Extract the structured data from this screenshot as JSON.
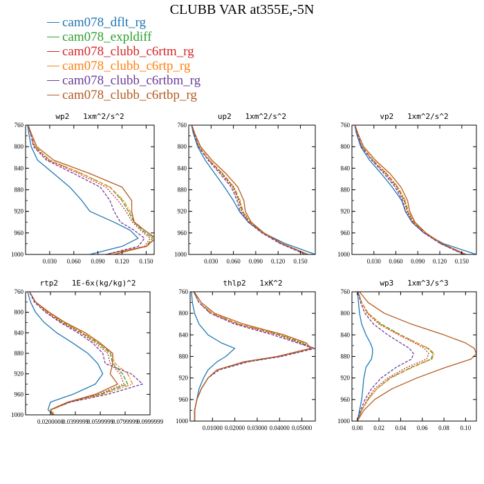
{
  "title": "CLUBB VAR at355E,-5N",
  "legend": [
    {
      "name": "cam078_dflt_rg",
      "color": "#1f77b4",
      "dash": ""
    },
    {
      "name": "cam078_expldiff",
      "color": "#2ca02c",
      "dash": "6,2"
    },
    {
      "name": "cam078_clubb_c6rtm_rg",
      "color": "#d62728",
      "dash": "2,2"
    },
    {
      "name": "cam078_clubb_c6rtp_rg",
      "color": "#ff7f0e",
      "dash": "6,2,2,2"
    },
    {
      "name": "cam078_clubb_c6rtbm_rg",
      "color": "#6a3d9a",
      "dash": "4,2"
    },
    {
      "name": "cam078_clubb_c6rtbp_rg",
      "color": "#b35a1f",
      "dash": ""
    }
  ],
  "chart_data": [
    {
      "type": "line",
      "title": "wp2   1xm^2/s^2",
      "xlim": [
        0,
        0.16
      ],
      "ylim": [
        760,
        1000
      ],
      "xticks": [
        0.03,
        0.06,
        0.09,
        0.12,
        0.15
      ],
      "xticklabels": [
        "0.030",
        "0.060",
        "0.090",
        "0.120",
        "0.150"
      ],
      "yticks": [
        760,
        800,
        840,
        880,
        920,
        960,
        1000
      ],
      "y": [
        755,
        775,
        800,
        825,
        850,
        875,
        900,
        920,
        940,
        955,
        970,
        985,
        1000
      ],
      "series": [
        {
          "name": "cam078_dflt_rg",
          "values": [
            0.002,
            0.004,
            0.007,
            0.015,
            0.035,
            0.055,
            0.07,
            0.08,
            0.11,
            0.13,
            0.14,
            0.12,
            0.08
          ]
        },
        {
          "name": "cam078_expldiff",
          "values": [
            0.002,
            0.006,
            0.012,
            0.03,
            0.07,
            0.105,
            0.12,
            0.128,
            0.135,
            0.145,
            0.158,
            0.15,
            0.1
          ]
        },
        {
          "name": "cam078_clubb_c6rtm_rg",
          "values": [
            0.002,
            0.006,
            0.011,
            0.028,
            0.066,
            0.1,
            0.115,
            0.125,
            0.133,
            0.143,
            0.155,
            0.148,
            0.1
          ]
        },
        {
          "name": "cam078_clubb_c6rtp_rg",
          "values": [
            0.002,
            0.006,
            0.012,
            0.03,
            0.07,
            0.105,
            0.122,
            0.13,
            0.136,
            0.148,
            0.16,
            0.152,
            0.1
          ]
        },
        {
          "name": "cam078_clubb_c6rtbm_rg",
          "values": [
            0.002,
            0.006,
            0.01,
            0.026,
            0.06,
            0.093,
            0.105,
            0.11,
            0.118,
            0.135,
            0.148,
            0.14,
            0.1
          ]
        },
        {
          "name": "cam078_clubb_c6rtbp_rg",
          "values": [
            0.002,
            0.007,
            0.014,
            0.035,
            0.08,
            0.12,
            0.132,
            0.132,
            0.135,
            0.148,
            0.162,
            0.15,
            0.11
          ]
        }
      ]
    },
    {
      "type": "line",
      "title": "up2   1xm^2/s^2",
      "xlim": [
        0,
        0.17
      ],
      "ylim": [
        760,
        1000
      ],
      "xticks": [
        0.03,
        0.06,
        0.09,
        0.12,
        0.15
      ],
      "xticklabels": [
        "0.030",
        "0.060",
        "0.090",
        "0.120",
        "0.150"
      ],
      "yticks": [
        760,
        800,
        840,
        880,
        920,
        960,
        1000
      ],
      "y": [
        755,
        775,
        800,
        825,
        850,
        875,
        900,
        920,
        940,
        960,
        980,
        1000
      ],
      "series": [
        {
          "name": "cam078_dflt_rg",
          "values": [
            0.003,
            0.006,
            0.012,
            0.022,
            0.035,
            0.048,
            0.06,
            0.068,
            0.08,
            0.1,
            0.13,
            0.17
          ]
        },
        {
          "name": "cam078_expldiff",
          "values": [
            0.003,
            0.007,
            0.014,
            0.028,
            0.045,
            0.06,
            0.068,
            0.072,
            0.082,
            0.1,
            0.125,
            0.16
          ]
        },
        {
          "name": "cam078_clubb_c6rtm_rg",
          "values": [
            0.003,
            0.007,
            0.014,
            0.027,
            0.044,
            0.059,
            0.067,
            0.071,
            0.081,
            0.099,
            0.124,
            0.158
          ]
        },
        {
          "name": "cam078_clubb_c6rtp_rg",
          "values": [
            0.003,
            0.007,
            0.014,
            0.028,
            0.046,
            0.061,
            0.069,
            0.073,
            0.083,
            0.1,
            0.125,
            0.16
          ]
        },
        {
          "name": "cam078_clubb_c6rtbm_rg",
          "values": [
            0.003,
            0.007,
            0.013,
            0.026,
            0.042,
            0.057,
            0.065,
            0.069,
            0.08,
            0.098,
            0.123,
            0.157
          ]
        },
        {
          "name": "cam078_clubb_c6rtbp_rg",
          "values": [
            0.003,
            0.008,
            0.016,
            0.031,
            0.05,
            0.066,
            0.074,
            0.076,
            0.084,
            0.101,
            0.126,
            0.16
          ]
        }
      ]
    },
    {
      "type": "line",
      "title": "vp2   1xm^2/s^2",
      "xlim": [
        0,
        0.17
      ],
      "ylim": [
        760,
        1000
      ],
      "xticks": [
        0.03,
        0.06,
        0.09,
        0.12,
        0.15
      ],
      "xticklabels": [
        "0.030",
        "0.060",
        "0.090",
        "0.120",
        "0.150"
      ],
      "yticks": [
        760,
        800,
        840,
        880,
        920,
        960,
        1000
      ],
      "y": [
        755,
        775,
        800,
        825,
        850,
        875,
        900,
        920,
        940,
        960,
        980,
        1000
      ],
      "series": [
        {
          "name": "cam078_dflt_rg",
          "values": [
            0.003,
            0.006,
            0.012,
            0.024,
            0.04,
            0.055,
            0.068,
            0.073,
            0.082,
            0.098,
            0.125,
            0.17
          ]
        },
        {
          "name": "cam078_expldiff",
          "values": [
            0.003,
            0.007,
            0.014,
            0.029,
            0.047,
            0.062,
            0.072,
            0.076,
            0.084,
            0.1,
            0.122,
            0.155
          ]
        },
        {
          "name": "cam078_clubb_c6rtm_rg",
          "values": [
            0.003,
            0.007,
            0.014,
            0.028,
            0.046,
            0.061,
            0.071,
            0.075,
            0.083,
            0.099,
            0.121,
            0.153
          ]
        },
        {
          "name": "cam078_clubb_c6rtp_rg",
          "values": [
            0.003,
            0.007,
            0.014,
            0.029,
            0.048,
            0.063,
            0.073,
            0.077,
            0.085,
            0.1,
            0.122,
            0.155
          ]
        },
        {
          "name": "cam078_clubb_c6rtbm_rg",
          "values": [
            0.003,
            0.007,
            0.013,
            0.027,
            0.044,
            0.059,
            0.069,
            0.073,
            0.082,
            0.098,
            0.121,
            0.153
          ]
        },
        {
          "name": "cam078_clubb_c6rtbp_rg",
          "values": [
            0.003,
            0.008,
            0.016,
            0.032,
            0.052,
            0.067,
            0.076,
            0.079,
            0.086,
            0.101,
            0.123,
            0.156
          ]
        }
      ]
    },
    {
      "type": "line",
      "title": "rtp2   1E-6x(kg/kg)^2",
      "xlim": [
        0,
        0.1
      ],
      "ylim": [
        760,
        1000
      ],
      "xticks": [
        0.02,
        0.04,
        0.06,
        0.08,
        0.1
      ],
      "xticklabels": [
        "0.0200000",
        "0.0399999",
        "0.0599999",
        "0.0799999",
        "0.0999999"
      ],
      "yticks": [
        760,
        800,
        840,
        880,
        920,
        960,
        1000
      ],
      "y": [
        755,
        780,
        800,
        820,
        840,
        860,
        880,
        900,
        920,
        940,
        960,
        975,
        990,
        1000
      ],
      "series": [
        {
          "name": "cam078_dflt_rg",
          "values": [
            0.001,
            0.004,
            0.008,
            0.015,
            0.025,
            0.038,
            0.05,
            0.058,
            0.062,
            0.056,
            0.038,
            0.02,
            0.018,
            0.022
          ]
        },
        {
          "name": "cam078_expldiff",
          "values": [
            0.002,
            0.008,
            0.018,
            0.03,
            0.045,
            0.058,
            0.068,
            0.07,
            0.078,
            0.082,
            0.06,
            0.035,
            0.02,
            0.022
          ]
        },
        {
          "name": "cam078_clubb_c6rtm_rg",
          "values": [
            0.002,
            0.008,
            0.017,
            0.029,
            0.044,
            0.056,
            0.066,
            0.068,
            0.076,
            0.079,
            0.058,
            0.034,
            0.02,
            0.022
          ]
        },
        {
          "name": "cam078_clubb_c6rtp_rg",
          "values": [
            0.002,
            0.008,
            0.018,
            0.031,
            0.046,
            0.059,
            0.069,
            0.072,
            0.082,
            0.086,
            0.062,
            0.036,
            0.021,
            0.023
          ]
        },
        {
          "name": "cam078_clubb_c6rtbm_rg",
          "values": [
            0.002,
            0.007,
            0.016,
            0.028,
            0.042,
            0.054,
            0.062,
            0.064,
            0.085,
            0.094,
            0.066,
            0.036,
            0.02,
            0.022
          ]
        },
        {
          "name": "cam078_clubb_c6rtbp_rg",
          "values": [
            0.002,
            0.008,
            0.019,
            0.032,
            0.048,
            0.06,
            0.07,
            0.07,
            0.068,
            0.074,
            0.056,
            0.034,
            0.02,
            0.022
          ]
        }
      ]
    },
    {
      "type": "line",
      "title": "thlp2   1xK^2",
      "xlim": [
        0,
        0.056
      ],
      "ylim": [
        760,
        1000
      ],
      "xticks": [
        0.01,
        0.02,
        0.03,
        0.04,
        0.05
      ],
      "xticklabels": [
        "0.01000",
        "0.02000",
        "0.03000",
        "0.04000",
        "0.05000"
      ],
      "yticks": [
        760,
        800,
        840,
        880,
        920,
        960,
        1000
      ],
      "y": [
        755,
        780,
        800,
        820,
        840,
        855,
        865,
        880,
        890,
        905,
        920,
        940,
        960,
        980,
        1000
      ],
      "series": [
        {
          "name": "cam078_dflt_rg",
          "values": [
            0.0005,
            0.001,
            0.002,
            0.004,
            0.008,
            0.014,
            0.02,
            0.016,
            0.012,
            0.008,
            0.006,
            0.004,
            0.003,
            0.002,
            0.002
          ]
        },
        {
          "name": "cam078_expldiff",
          "values": [
            0.001,
            0.004,
            0.01,
            0.022,
            0.04,
            0.05,
            0.055,
            0.04,
            0.025,
            0.012,
            0.008,
            0.005,
            0.003,
            0.002,
            0.002
          ]
        },
        {
          "name": "cam078_clubb_c6rtm_rg",
          "values": [
            0.001,
            0.004,
            0.009,
            0.021,
            0.039,
            0.049,
            0.054,
            0.039,
            0.024,
            0.012,
            0.008,
            0.005,
            0.003,
            0.002,
            0.002
          ]
        },
        {
          "name": "cam078_clubb_c6rtp_rg",
          "values": [
            0.001,
            0.004,
            0.01,
            0.022,
            0.041,
            0.051,
            0.055,
            0.04,
            0.025,
            0.012,
            0.008,
            0.005,
            0.003,
            0.002,
            0.002
          ]
        },
        {
          "name": "cam078_clubb_c6rtbm_rg",
          "values": [
            0.001,
            0.004,
            0.009,
            0.02,
            0.037,
            0.048,
            0.056,
            0.041,
            0.026,
            0.013,
            0.008,
            0.005,
            0.003,
            0.002,
            0.002
          ]
        },
        {
          "name": "cam078_clubb_c6rtbp_rg",
          "values": [
            0.001,
            0.005,
            0.011,
            0.024,
            0.042,
            0.052,
            0.054,
            0.039,
            0.024,
            0.012,
            0.008,
            0.005,
            0.003,
            0.002,
            0.002
          ]
        }
      ]
    },
    {
      "type": "line",
      "title": "wp3   1xm^3/s^3",
      "xlim": [
        -0.005,
        0.11
      ],
      "ylim": [
        760,
        1000
      ],
      "xticks": [
        0.0,
        0.02,
        0.04,
        0.06,
        0.08,
        0.1
      ],
      "xticklabels": [
        "0.00",
        "0.02",
        "0.04",
        "0.06",
        "0.08",
        "0.10"
      ],
      "yticks": [
        760,
        800,
        840,
        880,
        920,
        960,
        1000
      ],
      "y": [
        755,
        780,
        800,
        820,
        840,
        855,
        865,
        875,
        885,
        900,
        920,
        940,
        960,
        980,
        1000
      ],
      "series": [
        {
          "name": "cam078_dflt_rg",
          "values": [
            0.0,
            0.001,
            0.002,
            0.004,
            0.008,
            0.012,
            0.014,
            0.014,
            0.013,
            0.008,
            0.006,
            0.005,
            0.004,
            0.002,
            0.0
          ]
        },
        {
          "name": "cam078_expldiff",
          "values": [
            0.0,
            0.004,
            0.01,
            0.022,
            0.04,
            0.055,
            0.065,
            0.07,
            0.068,
            0.05,
            0.03,
            0.018,
            0.01,
            0.004,
            0.0
          ]
        },
        {
          "name": "cam078_clubb_c6rtm_rg",
          "values": [
            0.0,
            0.004,
            0.009,
            0.02,
            0.038,
            0.053,
            0.062,
            0.066,
            0.064,
            0.046,
            0.028,
            0.016,
            0.009,
            0.004,
            0.0
          ]
        },
        {
          "name": "cam078_clubb_c6rtp_rg",
          "values": [
            0.0,
            0.004,
            0.01,
            0.021,
            0.039,
            0.055,
            0.066,
            0.071,
            0.069,
            0.051,
            0.031,
            0.018,
            0.01,
            0.004,
            0.0
          ]
        },
        {
          "name": "cam078_clubb_c6rtbm_rg",
          "values": [
            0.0,
            0.003,
            0.007,
            0.015,
            0.028,
            0.04,
            0.048,
            0.052,
            0.05,
            0.036,
            0.022,
            0.013,
            0.007,
            0.003,
            0.0
          ]
        },
        {
          "name": "cam078_clubb_c6rtbp_rg",
          "values": [
            0.0,
            0.01,
            0.025,
            0.05,
            0.08,
            0.1,
            0.108,
            0.11,
            0.105,
            0.082,
            0.055,
            0.032,
            0.016,
            0.006,
            0.0
          ]
        }
      ]
    }
  ]
}
